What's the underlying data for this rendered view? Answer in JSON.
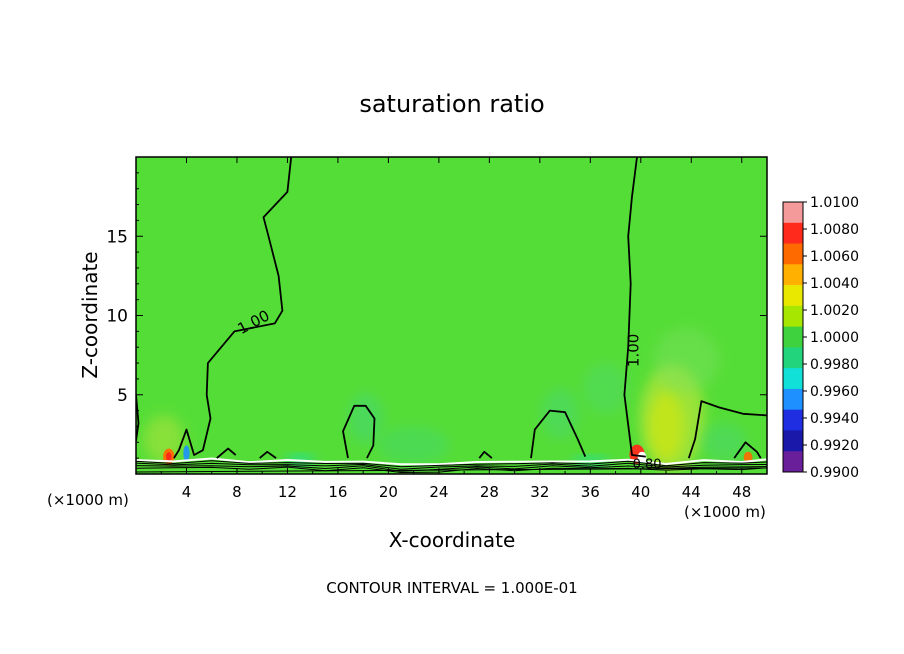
{
  "chart_data": {
    "type": "heatmap",
    "title": "saturation ratio",
    "xlabel": "X-coordinate",
    "ylabel": "Z-coordinate",
    "x_unit": "(×1000 m)",
    "xlim": [
      0,
      50
    ],
    "ylim": [
      0,
      20
    ],
    "x_ticks": [
      4,
      8,
      12,
      16,
      20,
      24,
      28,
      32,
      36,
      40,
      44,
      48
    ],
    "y_ticks": [
      5,
      10,
      15
    ],
    "colorbar": {
      "labels": [
        "1.0100",
        "1.0080",
        "1.0060",
        "1.0040",
        "1.0020",
        "1.0000",
        "0.9980",
        "0.9960",
        "0.9940",
        "0.9920",
        "0.9900"
      ],
      "colors": [
        "#f59a9a",
        "#ff2a1c",
        "#ff6a00",
        "#ffb000",
        "#e8e800",
        "#a6e600",
        "#3fd23f",
        "#22d47c",
        "#10e0d8",
        "#1e90ff",
        "#1f2ee0",
        "#1a18a8",
        "#6a1f9a"
      ]
    },
    "field_background": "#55dd37",
    "contour_labels": [
      {
        "text": "1.00",
        "x": 9.5,
        "y": 9.3
      },
      {
        "text": "1.00",
        "x": 39.8,
        "y": 7.8
      },
      {
        "text": "0.80",
        "x": 40.5,
        "y": 0.35
      }
    ],
    "contours_1_00": [
      [
        [
          12.3,
          20
        ],
        [
          12.0,
          17.8
        ],
        [
          10.1,
          16.2
        ],
        [
          10.5,
          15.0
        ],
        [
          11.3,
          12.5
        ],
        [
          11.6,
          10.3
        ],
        [
          11.0,
          9.5
        ],
        [
          7.8,
          9.0
        ],
        [
          5.7,
          7.0
        ],
        [
          5.6,
          5.0
        ],
        [
          5.9,
          3.5
        ],
        [
          5.3,
          1.5
        ],
        [
          4.6,
          1.2
        ],
        [
          4.0,
          2.8
        ],
        [
          3.4,
          1.5
        ],
        [
          3.0,
          1.0
        ]
      ],
      [
        [
          39.7,
          20
        ],
        [
          39.3,
          17.5
        ],
        [
          39.0,
          15.0
        ],
        [
          39.2,
          12.0
        ],
        [
          39.0,
          8.0
        ],
        [
          38.7,
          5.0
        ],
        [
          39.1,
          2.5
        ],
        [
          39.3,
          1.2
        ],
        [
          40.4,
          1.1
        ]
      ],
      [
        [
          16.8,
          1.0
        ],
        [
          16.4,
          2.7
        ],
        [
          17.3,
          4.3
        ],
        [
          18.2,
          4.3
        ],
        [
          18.9,
          3.5
        ],
        [
          18.8,
          1.8
        ],
        [
          18.3,
          1.0
        ]
      ],
      [
        [
          31.3,
          1.0
        ],
        [
          31.6,
          2.8
        ],
        [
          32.8,
          4.0
        ],
        [
          34.0,
          3.9
        ],
        [
          35.0,
          2.2
        ],
        [
          35.6,
          1.1
        ]
      ],
      [
        [
          43.8,
          1.0
        ],
        [
          44.3,
          2.2
        ],
        [
          44.8,
          4.6
        ],
        [
          46.2,
          4.2
        ],
        [
          48.1,
          3.8
        ],
        [
          50,
          3.7
        ]
      ],
      [
        [
          0,
          5.0
        ],
        [
          0.2,
          3.2
        ],
        [
          0,
          2.1
        ]
      ],
      [
        [
          6.4,
          1.0
        ],
        [
          7.3,
          1.6
        ],
        [
          7.9,
          1.2
        ]
      ],
      [
        [
          9.8,
          1.0
        ],
        [
          10.4,
          1.4
        ],
        [
          11.1,
          1.0
        ]
      ],
      [
        [
          27.2,
          1.0
        ],
        [
          27.6,
          1.4
        ],
        [
          28.2,
          1.0
        ]
      ],
      [
        [
          47.4,
          1.0
        ],
        [
          48.3,
          2.0
        ],
        [
          49.2,
          1.4
        ],
        [
          49.5,
          1.0
        ]
      ]
    ],
    "blobs": [
      {
        "x": 42.5,
        "y": 3.5,
        "rx": 2.6,
        "ry": 3.4,
        "color": "#d2e83a",
        "op": 0.55
      },
      {
        "x": 42.0,
        "y": 3.0,
        "rx": 1.4,
        "ry": 2.2,
        "color": "#e8e800",
        "op": 0.5
      },
      {
        "x": 43.6,
        "y": 7.2,
        "rx": 2.6,
        "ry": 2.0,
        "color": "#7ce060",
        "op": 0.45
      },
      {
        "x": 33.6,
        "y": 3.8,
        "rx": 1.5,
        "ry": 1.6,
        "color": "#48d87a",
        "op": 0.45
      },
      {
        "x": 37.2,
        "y": 5.4,
        "rx": 1.8,
        "ry": 1.6,
        "color": "#48d87a",
        "op": 0.35
      },
      {
        "x": 18.2,
        "y": 3.5,
        "rx": 1.4,
        "ry": 1.6,
        "color": "#42d67a",
        "op": 0.5
      },
      {
        "x": 22.0,
        "y": 1.8,
        "rx": 2.8,
        "ry": 1.2,
        "color": "#42d67a",
        "op": 0.4
      },
      {
        "x": 2.2,
        "y": 2.2,
        "rx": 1.6,
        "ry": 1.5,
        "color": "#b0e43a",
        "op": 0.55
      },
      {
        "x": 46.6,
        "y": 2.0,
        "rx": 1.8,
        "ry": 1.2,
        "color": "#48d87a",
        "op": 0.45
      },
      {
        "x": 2.6,
        "y": 1.1,
        "rx": 0.45,
        "ry": 0.5,
        "color": "#ff6a00",
        "op": 0.95
      },
      {
        "x": 2.6,
        "y": 1.1,
        "rx": 0.22,
        "ry": 0.28,
        "color": "#ff2a1c",
        "op": 1
      },
      {
        "x": 39.7,
        "y": 1.25,
        "rx": 0.6,
        "ry": 0.6,
        "color": "#ff2a1c",
        "op": 0.95
      },
      {
        "x": 40.1,
        "y": 1.05,
        "rx": 0.35,
        "ry": 0.35,
        "color": "#ffffff",
        "op": 1
      },
      {
        "x": 48.5,
        "y": 1.05,
        "rx": 0.35,
        "ry": 0.35,
        "color": "#ff6a00",
        "op": 0.9
      },
      {
        "x": 4.0,
        "y": 1.3,
        "rx": 0.25,
        "ry": 0.5,
        "color": "#1e90ff",
        "op": 0.9
      },
      {
        "x": 13.0,
        "y": 0.9,
        "rx": 1.2,
        "ry": 0.25,
        "color": "#10e0d8",
        "op": 0.7
      },
      {
        "x": 36.0,
        "y": 0.8,
        "rx": 1.5,
        "ry": 0.25,
        "color": "#10e0d8",
        "op": 0.6
      }
    ]
  },
  "footer": {
    "contour_interval": "CONTOUR INTERVAL = 1.000E-01"
  }
}
